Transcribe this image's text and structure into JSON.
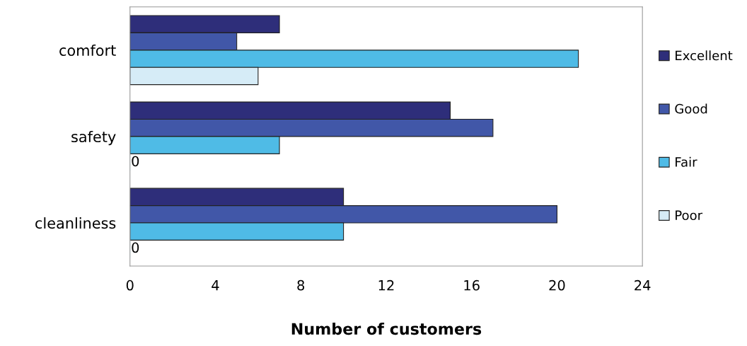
{
  "chart_data": {
    "type": "bar",
    "orientation": "horizontal",
    "xlabel": "Number of customers",
    "categories": [
      "comfort",
      "safety",
      "cleanliness"
    ],
    "series": [
      {
        "name": "Excellent",
        "color": "#2e2e7a",
        "values": [
          7,
          15,
          10
        ]
      },
      {
        "name": "Good",
        "color": "#4157a8",
        "values": [
          5,
          17,
          20
        ]
      },
      {
        "name": "Fair",
        "color": "#4fbbe6",
        "values": [
          21,
          7,
          10
        ]
      },
      {
        "name": "Poor",
        "color": "#d6ecf7",
        "values": [
          6,
          0,
          0
        ],
        "value_labels": [
          null,
          "0",
          "0"
        ]
      }
    ],
    "xlim": [
      0,
      24
    ],
    "xticks": [
      0,
      4,
      8,
      12,
      16,
      20,
      24
    ],
    "grid": false,
    "legend": "right"
  }
}
